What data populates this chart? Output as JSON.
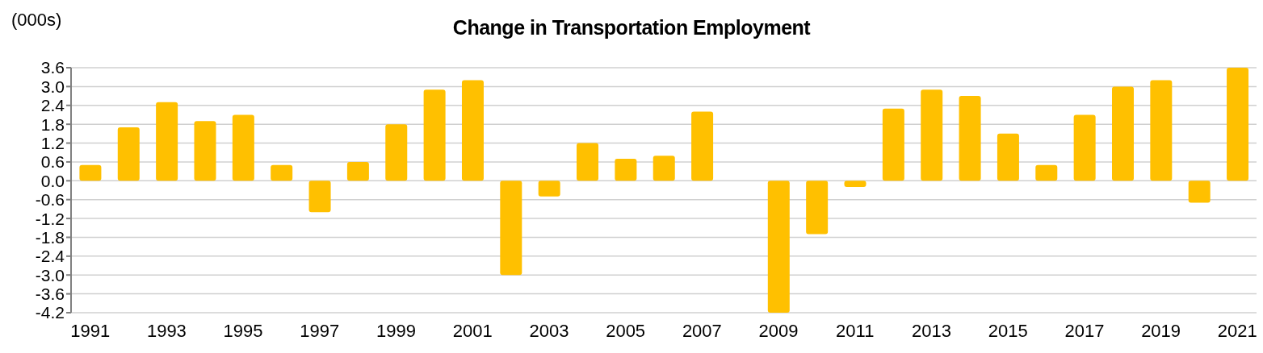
{
  "chart_data": {
    "type": "bar",
    "title": "Change in Transportation Employment",
    "ylabel": "(000s)",
    "categories": [
      "1991",
      null,
      "1993",
      null,
      "1995",
      null,
      "1997",
      null,
      "1999",
      null,
      "2001",
      null,
      "2003",
      null,
      "2005",
      null,
      "2007",
      null,
      "2009",
      null,
      "2011",
      null,
      "2013",
      null,
      "2015",
      null,
      "2017",
      null,
      "2019",
      null,
      "2021"
    ],
    "values": [
      0.5,
      1.7,
      2.5,
      1.9,
      2.1,
      0.5,
      -1.0,
      0.6,
      1.8,
      2.9,
      3.2,
      -3.0,
      -0.5,
      1.2,
      0.7,
      0.8,
      2.2,
      null,
      -4.2,
      -1.7,
      -0.2,
      2.3,
      2.9,
      2.7,
      1.5,
      0.5,
      2.1,
      3.0,
      3.2,
      -0.7,
      3.6
    ],
    "color": "#ffc000",
    "ylim": [
      -4.2,
      3.6
    ],
    "yticks": [
      -4.2,
      -3.6,
      {
        "value": -3,
        "label": "-3.0"
      },
      -2.4,
      -1.8,
      -1.2,
      -0.6,
      {
        "value": 0,
        "label": "0.0"
      },
      0.6,
      1.2,
      1.8,
      2.4,
      {
        "value": 3,
        "label": "3.0"
      },
      3.6
    ],
    "grid": "y"
  }
}
